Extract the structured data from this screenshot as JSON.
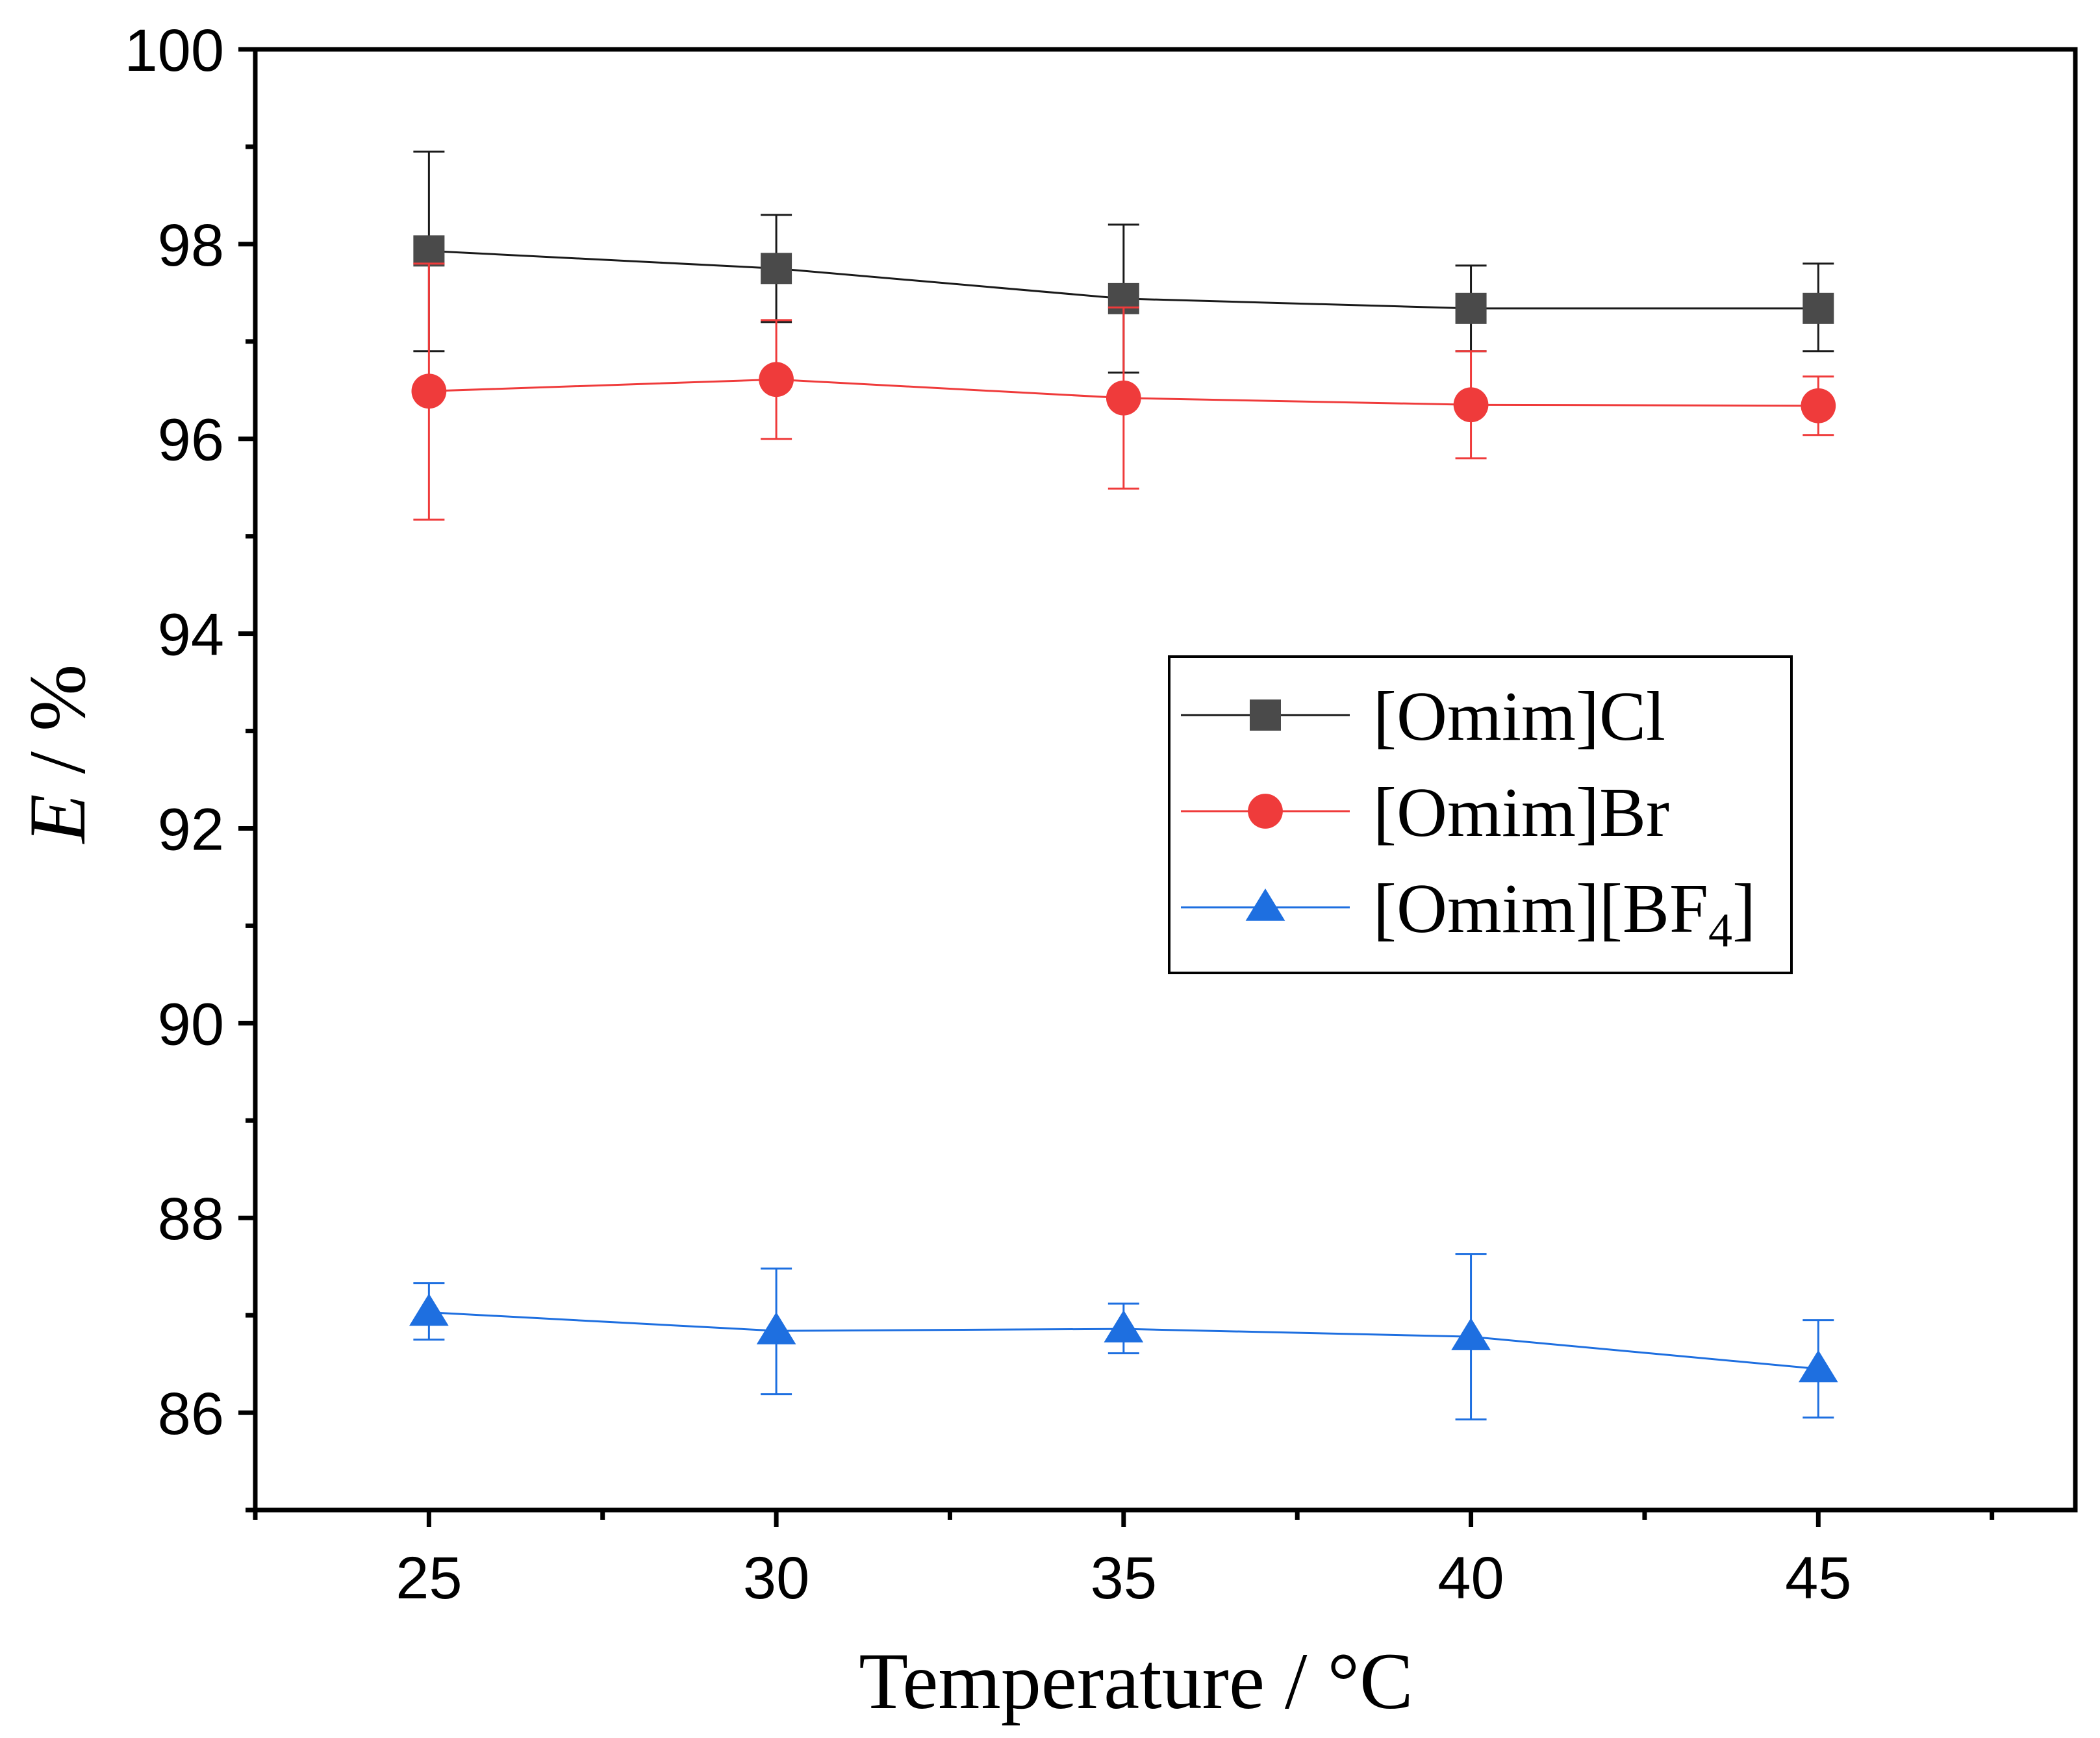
{
  "chart_data": {
    "type": "line",
    "title": "",
    "xlabel": "Temperature / °C",
    "ylabel": {
      "italic": "E",
      "rest": " / %"
    },
    "x": [
      25,
      30,
      35,
      40,
      45
    ],
    "xlim": [
      22.5,
      48.7
    ],
    "ylim": [
      85,
      100
    ],
    "xticks": [
      25,
      30,
      35,
      40,
      45
    ],
    "yticks": [
      86,
      88,
      90,
      92,
      94,
      96,
      98,
      100
    ],
    "grid": false,
    "legend_position": "center-right",
    "series": [
      {
        "name": "[Omim]Cl",
        "label_main": "[Omim]Cl",
        "label_sub": "",
        "label_tail": "",
        "marker": "square",
        "color": "#4a4a4a",
        "line_color": "#1a1a1a",
        "values": [
          97.93,
          97.75,
          97.44,
          97.34,
          97.34
        ],
        "error_upper": [
          98.95,
          98.3,
          98.2,
          97.78,
          97.8
        ],
        "error_lower": [
          96.9,
          97.2,
          96.68,
          96.9,
          96.9
        ]
      },
      {
        "name": "[Omim]Br",
        "label_main": "[Omim]Br",
        "label_sub": "",
        "label_tail": "",
        "marker": "circle",
        "color": "#ef3b3b",
        "line_color": "#ef3b3b",
        "values": [
          96.49,
          96.61,
          96.42,
          96.35,
          96.34
        ],
        "error_upper": [
          97.8,
          97.22,
          97.35,
          96.9,
          96.64
        ],
        "error_lower": [
          95.17,
          96.0,
          95.49,
          95.8,
          96.04
        ]
      },
      {
        "name": "[Omim][BF4]",
        "label_main": "[Omim][BF",
        "label_sub": "4",
        "label_tail": "]",
        "marker": "triangle",
        "color": "#1e6fe0",
        "line_color": "#1e6fe0",
        "values": [
          87.03,
          86.84,
          86.86,
          86.78,
          86.45
        ],
        "error_upper": [
          87.33,
          87.48,
          87.12,
          87.63,
          86.95
        ],
        "error_lower": [
          86.75,
          86.19,
          86.61,
          85.93,
          85.95
        ]
      }
    ]
  }
}
